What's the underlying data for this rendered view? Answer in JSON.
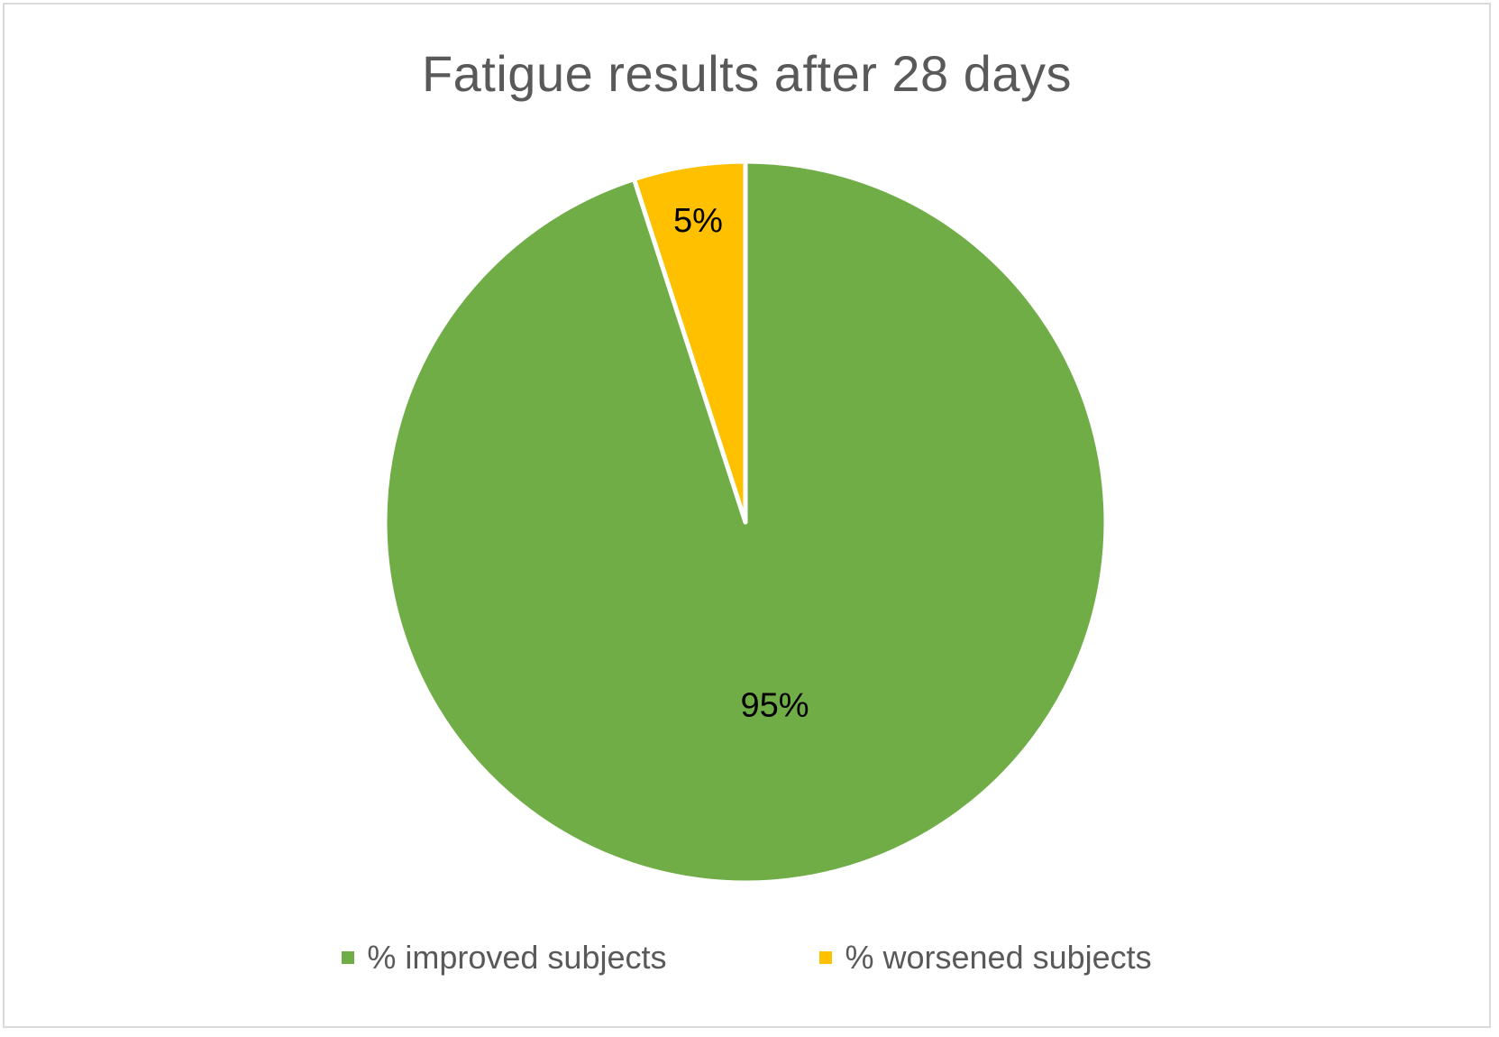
{
  "chart_data": {
    "type": "pie",
    "title": "Fatigue results after 28 days",
    "legend_position": "bottom",
    "slices": [
      {
        "name": "% improved subjects",
        "value": 95,
        "label": "95%",
        "color": "#70ad47"
      },
      {
        "name": "% worsened subjects",
        "value": 5,
        "label": "5%",
        "color": "#ffc000"
      }
    ]
  }
}
